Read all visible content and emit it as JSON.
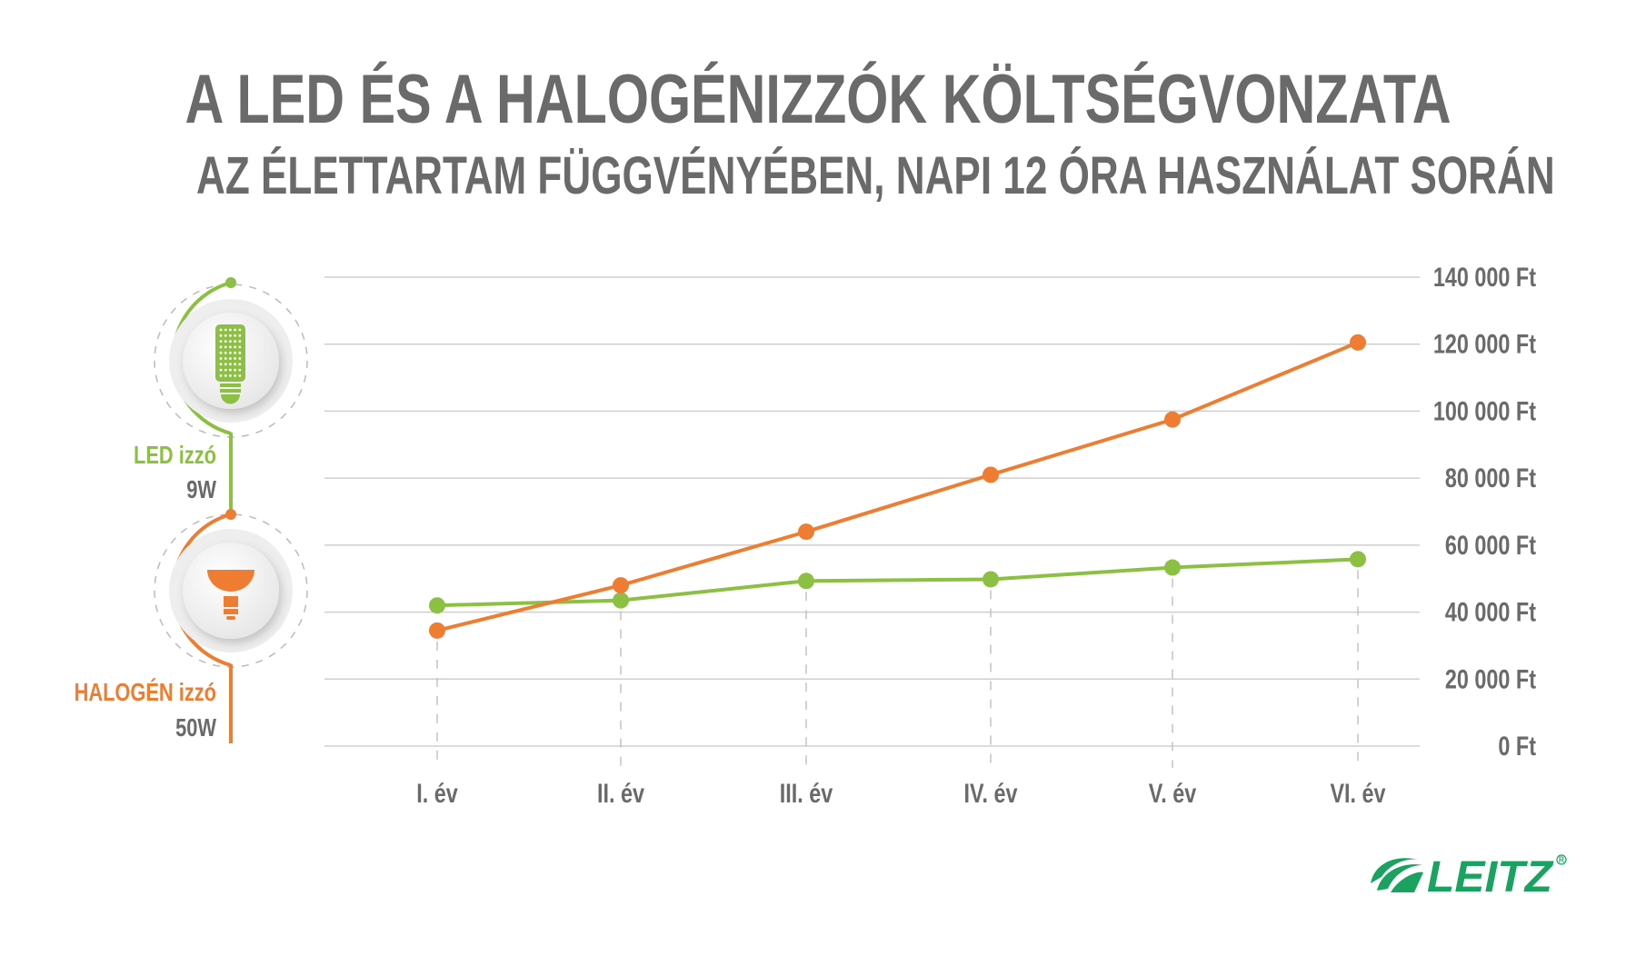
{
  "header": {
    "title": "A LED ÉS A HALOGÉNIZZÓK KÖLTSÉGVONZATA",
    "subtitle": "AZ ÉLETTARTAM FÜGGVÉNYÉBEN, NAPI 12 ÓRA HASZNÁLAT SORÁN"
  },
  "legend": {
    "led": {
      "label": "LED izzó",
      "power": "9W",
      "icon": "led-bulb-icon",
      "color": "#8bc043"
    },
    "halogen": {
      "label": "HALOGÉN izzó",
      "power": "50W",
      "icon": "halogen-bulb-icon",
      "color": "#ee7d31"
    }
  },
  "brand": {
    "logo_text": "LEITZ",
    "color": "#1aa260"
  },
  "chart_data": {
    "type": "line",
    "title": "A LED ÉS A HALOGÉNIZZÓK KÖLTSÉGVONZATA",
    "subtitle": "AZ ÉLETTARTAM FÜGGVÉNYÉBEN, NAPI 12 ÓRA HASZNÁLAT SORÁN",
    "categories": [
      "I. év",
      "II. év",
      "III. év",
      "IV. év",
      "V. év",
      "VI. év"
    ],
    "series": [
      {
        "name": "LED izzó",
        "color": "#8bc043",
        "values": [
          42000,
          43500,
          49300,
          49800,
          53300,
          55800
        ]
      },
      {
        "name": "HALOGÉN izzó",
        "color": "#ee7d31",
        "values": [
          34500,
          48000,
          64000,
          81000,
          97500,
          120500
        ]
      }
    ],
    "yticks": [
      "0 Ft",
      "20 000 Ft",
      "40 000 Ft",
      "60 000 Ft",
      "80 000 Ft",
      "100 000 Ft",
      "120 000 Ft",
      "140 000 Ft"
    ],
    "ylim": [
      0,
      140000
    ],
    "xlabel": "",
    "ylabel": "",
    "y_axis_position": "right",
    "grid": true,
    "legend_position": "left"
  }
}
